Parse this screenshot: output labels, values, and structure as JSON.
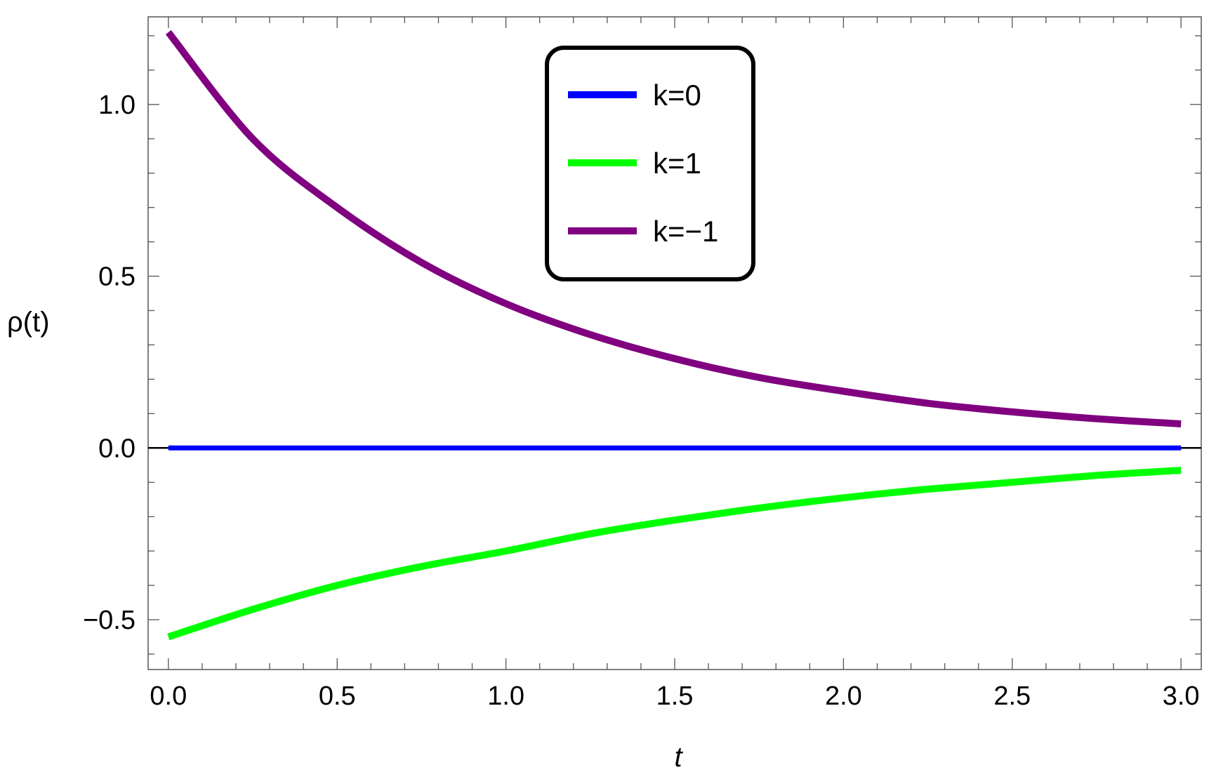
{
  "chart_data": {
    "type": "line",
    "xlabel": "t",
    "ylabel": "ρ(t)",
    "xlim": [
      -0.06,
      3.06
    ],
    "ylim": [
      -0.645,
      1.255
    ],
    "x_ticks": [
      {
        "value": 0.0,
        "label": "0.0"
      },
      {
        "value": 0.5,
        "label": "0.5"
      },
      {
        "value": 1.0,
        "label": "1.0"
      },
      {
        "value": 1.5,
        "label": "1.5"
      },
      {
        "value": 2.0,
        "label": "2.0"
      },
      {
        "value": 2.5,
        "label": "2.5"
      },
      {
        "value": 3.0,
        "label": "3.0"
      }
    ],
    "y_ticks": [
      {
        "value": -0.5,
        "label": "−0.5"
      },
      {
        "value": 0.0,
        "label": "0.0"
      },
      {
        "value": 0.5,
        "label": "0.5"
      },
      {
        "value": 1.0,
        "label": "1.0"
      }
    ],
    "grid": false,
    "legend_position": "top-center",
    "series": [
      {
        "name": "k=0",
        "color": "#0000ff",
        "x": [
          0.0,
          3.0
        ],
        "y": [
          0.0,
          0.0
        ]
      },
      {
        "name": "k=1",
        "color": "#00ff00",
        "x": [
          0.0,
          0.25,
          0.5,
          0.75,
          1.0,
          1.25,
          1.5,
          1.75,
          2.0,
          2.25,
          2.5,
          2.75,
          3.0
        ],
        "y": [
          -0.55,
          -0.47,
          -0.4,
          -0.345,
          -0.3,
          -0.25,
          -0.21,
          -0.175,
          -0.145,
          -0.12,
          -0.1,
          -0.08,
          -0.065
        ]
      },
      {
        "name": "k=−1",
        "color": "#800080",
        "x": [
          0.0,
          0.25,
          0.5,
          0.75,
          1.0,
          1.25,
          1.5,
          1.75,
          2.0,
          2.25,
          2.5,
          2.75,
          3.0
        ],
        "y": [
          1.21,
          0.9,
          0.7,
          0.54,
          0.42,
          0.33,
          0.26,
          0.205,
          0.165,
          0.13,
          0.105,
          0.085,
          0.07
        ]
      }
    ]
  }
}
